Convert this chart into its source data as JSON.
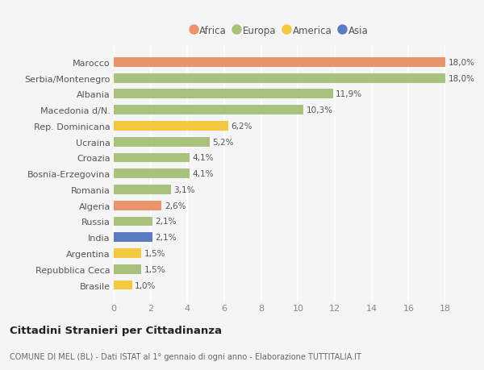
{
  "countries": [
    "Brasile",
    "Repubblica Ceca",
    "Argentina",
    "India",
    "Russia",
    "Algeria",
    "Romania",
    "Bosnia-Erzegovina",
    "Croazia",
    "Ucraina",
    "Rep. Dominicana",
    "Macedonia d/N.",
    "Albania",
    "Serbia/Montenegro",
    "Marocco"
  ],
  "values": [
    1.0,
    1.5,
    1.5,
    2.1,
    2.1,
    2.6,
    3.1,
    4.1,
    4.1,
    5.2,
    6.2,
    10.3,
    11.9,
    18.0,
    18.0
  ],
  "colors": [
    "#f5c842",
    "#a8c17c",
    "#f5c842",
    "#5b7abf",
    "#a8c17c",
    "#e8956d",
    "#a8c17c",
    "#a8c17c",
    "#a8c17c",
    "#a8c17c",
    "#f5c842",
    "#a8c17c",
    "#a8c17c",
    "#a8c17c",
    "#e8956d"
  ],
  "labels": [
    "1,0%",
    "1,5%",
    "1,5%",
    "2,1%",
    "2,1%",
    "2,6%",
    "3,1%",
    "4,1%",
    "4,1%",
    "5,2%",
    "6,2%",
    "10,3%",
    "11,9%",
    "18,0%",
    "18,0%"
  ],
  "legend": [
    {
      "label": "Africa",
      "color": "#e8956d"
    },
    {
      "label": "Europa",
      "color": "#a8c17c"
    },
    {
      "label": "America",
      "color": "#f5c842"
    },
    {
      "label": "Asia",
      "color": "#5b7abf"
    }
  ],
  "title": "Cittadini Stranieri per Cittadinanza",
  "subtitle": "COMUNE DI MEL (BL) - Dati ISTAT al 1° gennaio di ogni anno - Elaborazione TUTTITALIA.IT",
  "xlim": [
    0,
    18
  ],
  "xticks": [
    0,
    2,
    4,
    6,
    8,
    10,
    12,
    14,
    16,
    18
  ],
  "background_color": "#f5f5f5",
  "bar_height": 0.6,
  "grid_color": "#ffffff",
  "bar_alpha": 1.0,
  "label_fontsize": 7.5,
  "ytick_fontsize": 8.0,
  "xtick_fontsize": 8.0,
  "title_fontsize": 9.5,
  "subtitle_fontsize": 7.0,
  "legend_fontsize": 8.5
}
